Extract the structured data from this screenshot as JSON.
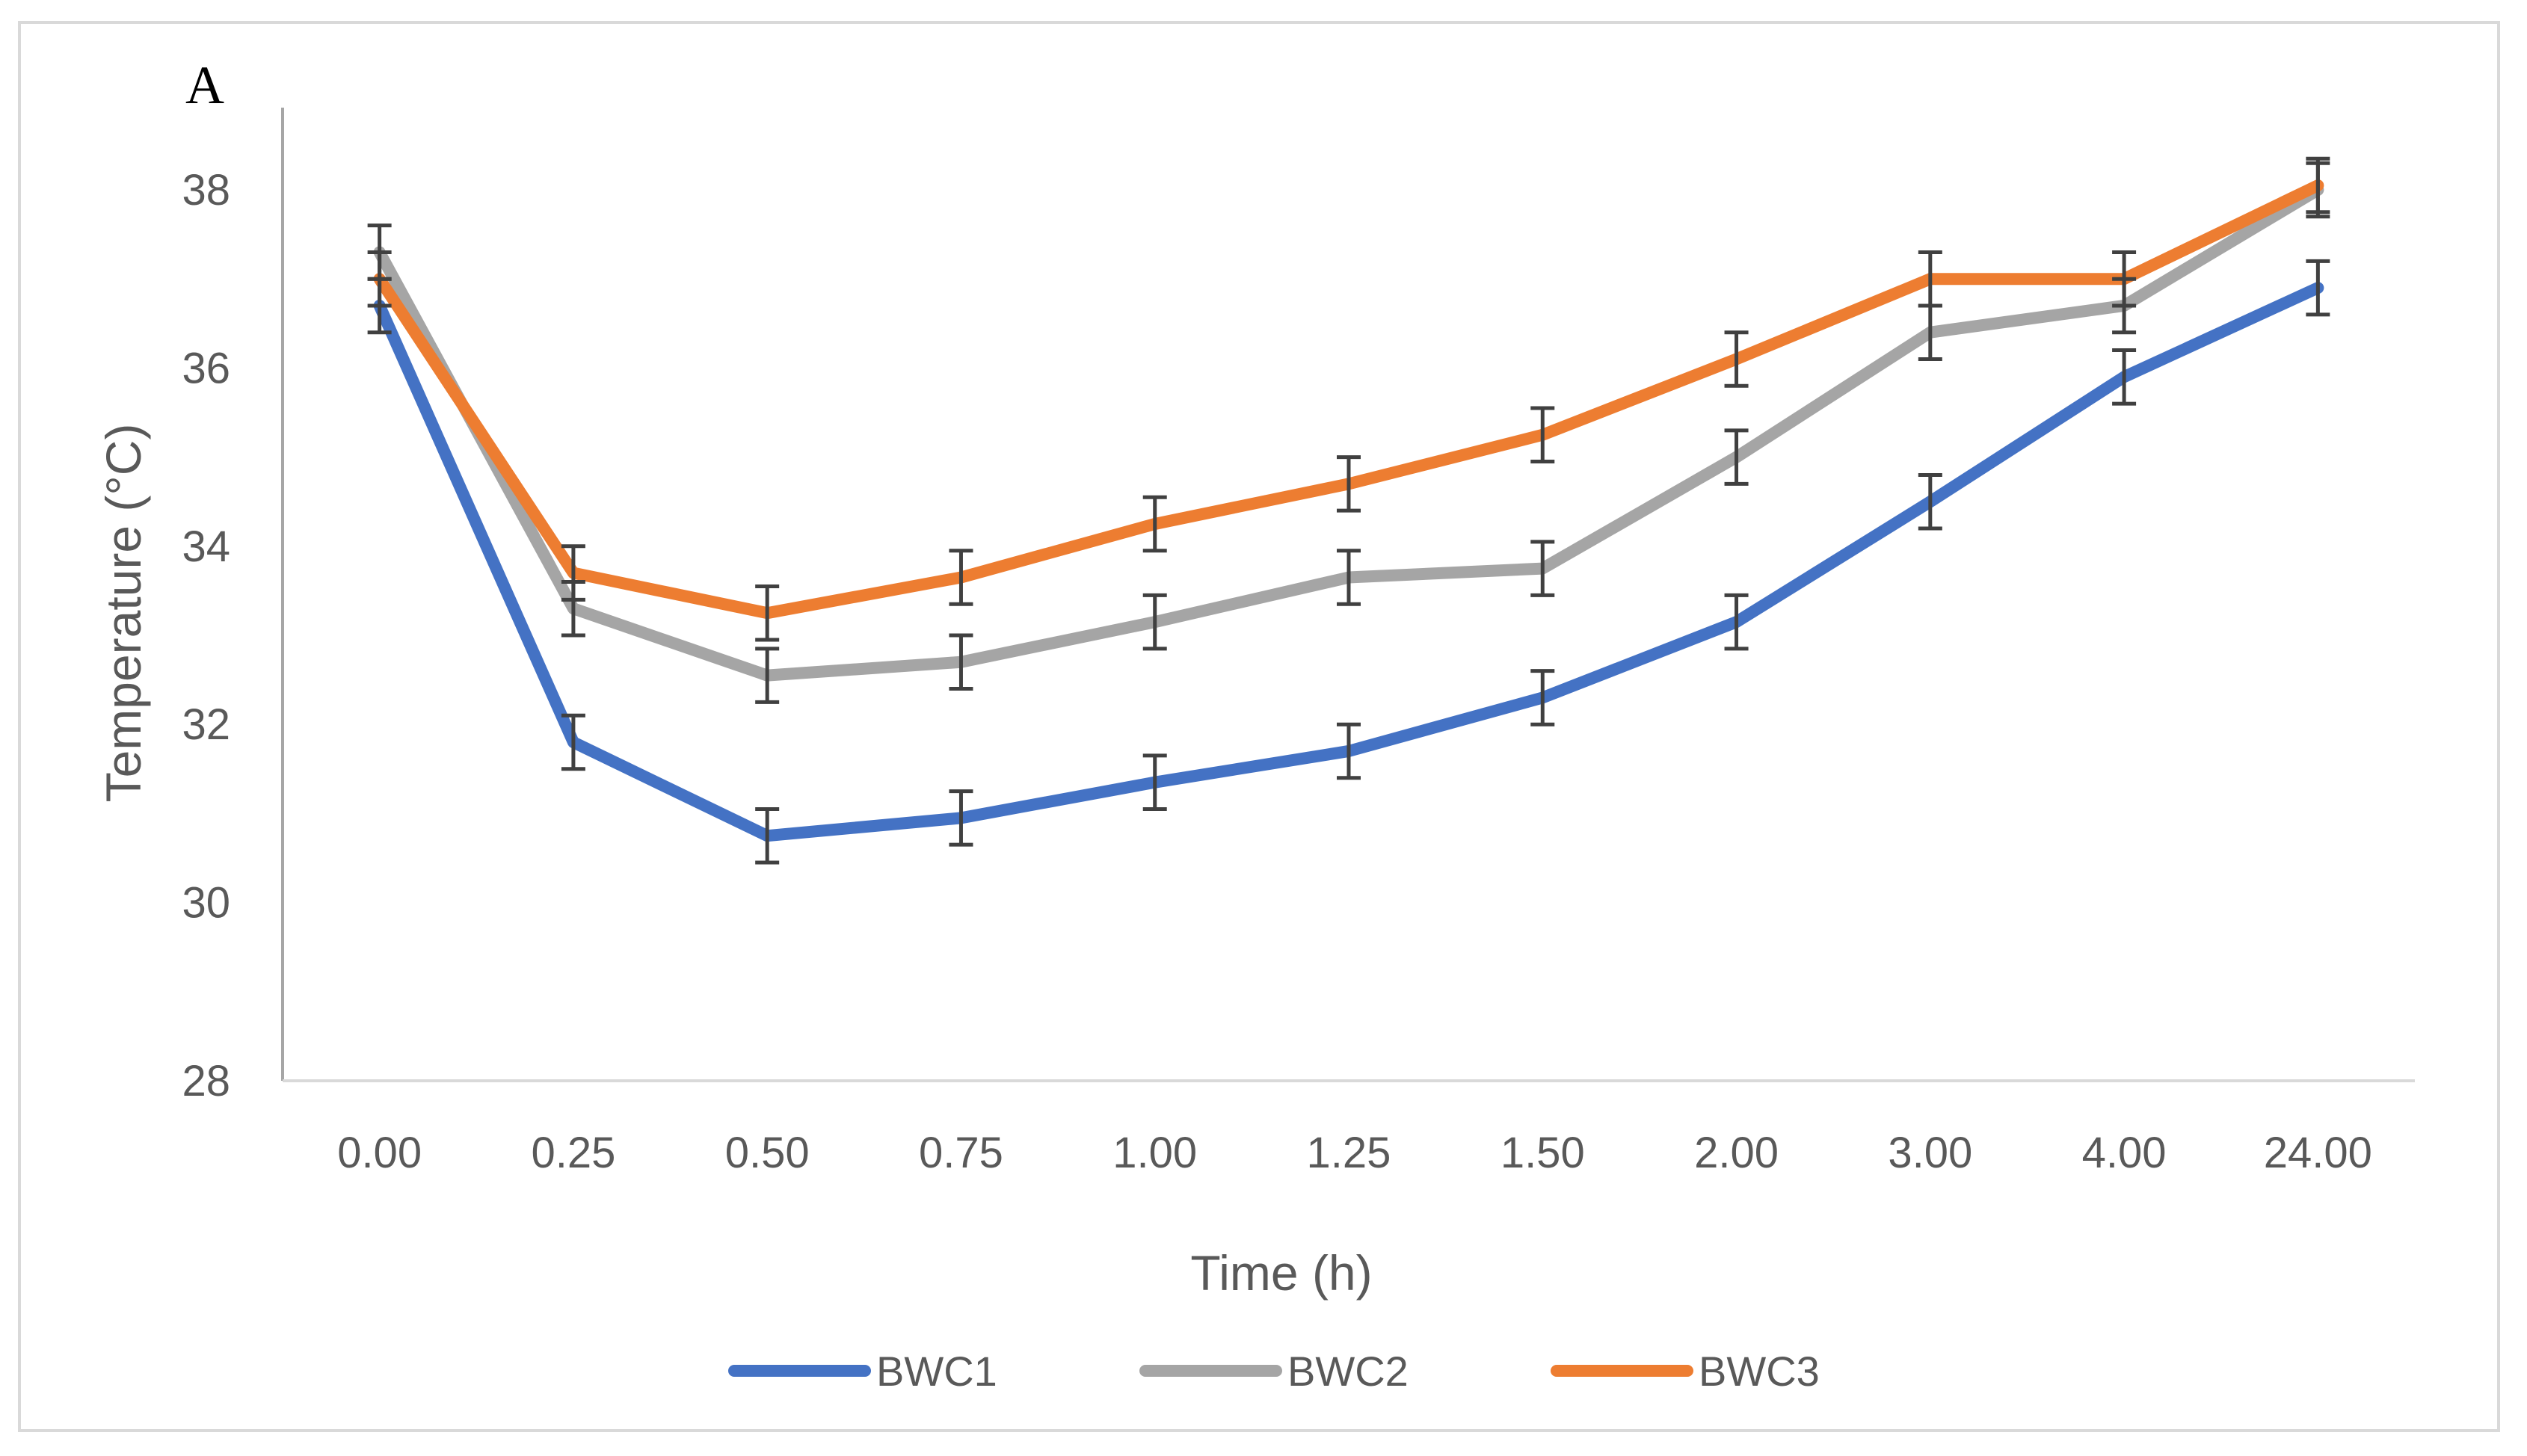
{
  "panel_label": "A",
  "chart_data": {
    "type": "line",
    "xlabel": "Time (h)",
    "ylabel": "Temperature (°C)",
    "ylim": [
      28,
      38
    ],
    "yticks": [
      "28",
      "30",
      "32",
      "34",
      "36",
      "38"
    ],
    "categories": [
      "0.00",
      "0.25",
      "0.50",
      "0.75",
      "1.00",
      "1.25",
      "1.50",
      "2.00",
      "3.00",
      "4.00",
      "24.00"
    ],
    "grid": false,
    "legend_position": "bottom",
    "error_bar": 0.3,
    "series": [
      {
        "name": "BWC1",
        "color": "#4472c4",
        "values": [
          36.7,
          31.8,
          30.75,
          30.95,
          31.35,
          31.7,
          32.3,
          33.15,
          34.5,
          35.9,
          36.9
        ]
      },
      {
        "name": "BWC2",
        "color": "#a5a5a5",
        "values": [
          37.3,
          33.3,
          32.55,
          32.7,
          33.15,
          33.65,
          33.75,
          35.0,
          36.4,
          36.7,
          38.0
        ]
      },
      {
        "name": "BWC3",
        "color": "#ed7d31",
        "values": [
          37.0,
          33.7,
          33.25,
          33.65,
          34.25,
          34.7,
          35.25,
          36.1,
          37.0,
          37.0,
          38.05
        ]
      }
    ]
  }
}
